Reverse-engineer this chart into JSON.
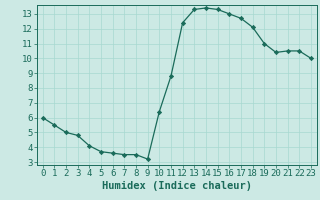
{
  "x": [
    0,
    1,
    2,
    3,
    4,
    5,
    6,
    7,
    8,
    9,
    10,
    11,
    12,
    13,
    14,
    15,
    16,
    17,
    18,
    19,
    20,
    21,
    22,
    23
  ],
  "y": [
    6.0,
    5.5,
    5.0,
    4.8,
    4.1,
    3.7,
    3.6,
    3.5,
    3.5,
    3.2,
    6.4,
    8.8,
    12.4,
    13.3,
    13.4,
    13.3,
    13.0,
    12.7,
    12.1,
    11.0,
    10.4,
    10.5,
    10.5,
    10.0
  ],
  "xlabel": "Humidex (Indice chaleur)",
  "ylim": [
    2.8,
    13.6
  ],
  "xlim": [
    -0.5,
    23.5
  ],
  "yticks": [
    3,
    4,
    5,
    6,
    7,
    8,
    9,
    10,
    11,
    12,
    13
  ],
  "xticks": [
    0,
    1,
    2,
    3,
    4,
    5,
    6,
    7,
    8,
    9,
    10,
    11,
    12,
    13,
    14,
    15,
    16,
    17,
    18,
    19,
    20,
    21,
    22,
    23
  ],
  "line_color": "#1a6b5a",
  "marker_color": "#1a6b5a",
  "bg_color": "#cce9e4",
  "grid_color": "#a8d8d0",
  "text_color": "#1a6b5a",
  "tick_fontsize": 6.5,
  "xlabel_fontsize": 7.5
}
